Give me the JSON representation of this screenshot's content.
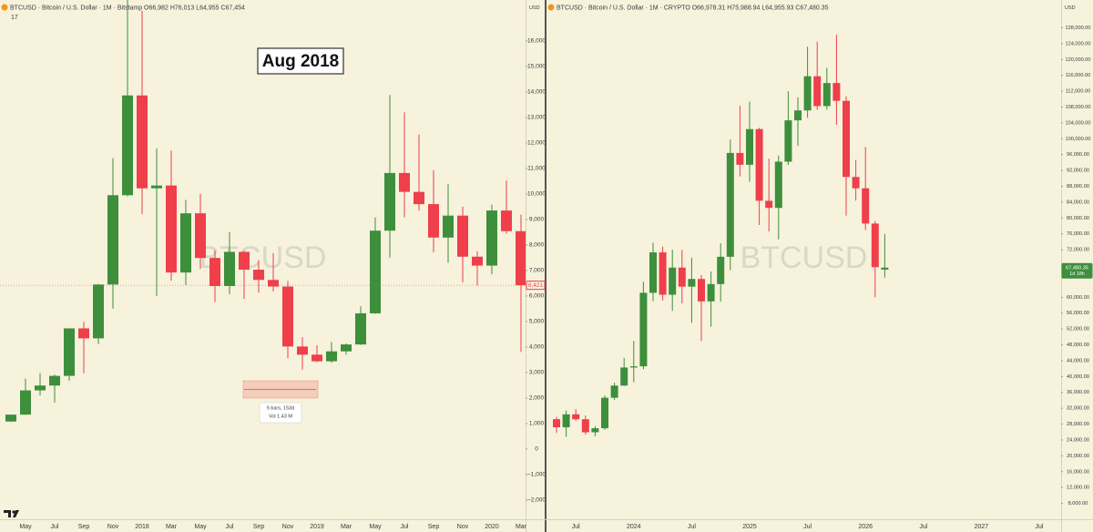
{
  "chart_data": [
    {
      "type": "candlestick",
      "header": "BTCUSD · Bitcoin / U.S. Dollar · 1M · Bitstamp  O66,982 H76,013 L64,955 C67,454",
      "currency": "USD",
      "indicator": "17",
      "watermark": "BTCUSD",
      "annotation": "Aug 2018",
      "measure_label": "5 bars, 153d",
      "measure_volume": "Vol 1.43 M",
      "price_label": "6,421",
      "up_color": "#3d8f3c",
      "down_color": "#ee3f4b",
      "grid": false,
      "categories": [
        null,
        "May",
        null,
        "Jul",
        null,
        "Sep",
        null,
        "Nov",
        null,
        "2018",
        null,
        "Mar",
        null,
        "May",
        null,
        "Jul",
        null,
        "Sep",
        null,
        "Nov",
        null,
        "2019",
        null,
        "Mar",
        null,
        "May",
        null,
        "Jul",
        null,
        "Sep",
        null,
        "Nov",
        null,
        "2020",
        null,
        "Mar"
      ],
      "open": [
        1080,
        1350,
        2300,
        2490,
        2870,
        4730,
        4340,
        6450,
        9950,
        13860,
        10220,
        10330,
        6920,
        9240,
        7490,
        6390,
        7730,
        7030,
        6630,
        6370,
        4020,
        3700,
        3440,
        3830,
        4100,
        5320,
        8560,
        10820,
        10080,
        9600,
        8290,
        9150,
        7540,
        7190,
        9350,
        8540
      ],
      "high": [
        1350,
        2760,
        2980,
        2920,
        4740,
        4980,
        6470,
        11400,
        19670,
        17180,
        11790,
        11700,
        9770,
        10000,
        7780,
        8500,
        7760,
        7410,
        7680,
        6590,
        4390,
        4070,
        4200,
        4140,
        5600,
        9080,
        13880,
        13200,
        12330,
        10930,
        10380,
        9500,
        7750,
        9580,
        10520,
        9190
      ],
      "low": [
        1060,
        1350,
        2100,
        1830,
        2670,
        2970,
        4110,
        5500,
        9900,
        9200,
        6000,
        6600,
        6430,
        7060,
        5760,
        6070,
        5880,
        6130,
        6180,
        3560,
        3120,
        3400,
        3380,
        3700,
        4080,
        5300,
        7500,
        9080,
        9350,
        7710,
        7300,
        6530,
        6410,
        6850,
        8440,
        3800
      ],
      "close": [
        1350,
        2300,
        2490,
        2870,
        4730,
        4340,
        6450,
        9950,
        13860,
        10220,
        10330,
        6920,
        9240,
        7490,
        6390,
        7730,
        7030,
        6630,
        6370,
        4020,
        3700,
        3440,
        3830,
        4100,
        5320,
        8560,
        10820,
        10080,
        9600,
        8290,
        9150,
        7540,
        7190,
        9350,
        8540,
        6421
      ],
      "ylim": [
        -2750,
        17600
      ],
      "yticks": [
        {
          "value": -2000,
          "label": "−2,000"
        },
        {
          "value": -1000,
          "label": "−1,000"
        },
        0,
        {
          "value": 1000,
          "label": "1,000"
        },
        {
          "value": 2000,
          "label": "2,000"
        },
        {
          "value": 3000,
          "label": "3,000"
        },
        {
          "value": 4000,
          "label": "4,000"
        },
        {
          "value": 5000,
          "label": "5,000"
        },
        {
          "value": 6000,
          "label": "6,000"
        },
        {
          "value": 7000,
          "label": "7,000"
        },
        {
          "value": 8000,
          "label": "8,000"
        },
        {
          "value": 9000,
          "label": "9,000"
        },
        {
          "value": 10000,
          "label": "10,000"
        },
        {
          "value": 11000,
          "label": "11,000"
        },
        {
          "value": 12000,
          "label": "12,000"
        },
        {
          "value": 13000,
          "label": "13,000"
        },
        {
          "value": 14000,
          "label": "14,000"
        },
        {
          "value": 15000,
          "label": "15,000"
        },
        {
          "value": 16000,
          "label": "16,000"
        }
      ]
    },
    {
      "type": "candlestick",
      "header": "BTCUSD · Bitcoin / U.S. Dollar · 1M · CRYPTO  O66,978.31 H75,988.94 L64,955.93 C67,480.35",
      "currency": "USD",
      "watermark": "BTCUSD",
      "price_label": "67,480.35",
      "countdown": "1d 18h",
      "up_color": "#3d8f3c",
      "down_color": "#ee3f4b",
      "grid": false,
      "categories": [
        null,
        null,
        "Jul",
        null,
        null,
        null,
        null,
        null,
        "2024",
        null,
        null,
        null,
        null,
        null,
        "Jul",
        null,
        null,
        null,
        null,
        null,
        "2025",
        null,
        null,
        null,
        null,
        null,
        "Jul",
        null,
        null,
        null,
        null,
        null,
        "2026",
        null,
        null,
        null,
        null,
        null,
        "Jul",
        null,
        null,
        null,
        null,
        null,
        "2027",
        null,
        null,
        null,
        null,
        null,
        "Jul"
      ],
      "open": [
        29250,
        27200,
        30470,
        29230,
        25940,
        26960,
        34650,
        37720,
        42280,
        42580,
        61130,
        71330,
        60640,
        67490,
        62680,
        64620,
        58970,
        63330,
        70220,
        96410,
        93430,
        102430,
        84350,
        82550,
        94210,
        104640,
        107140,
        115760,
        108240,
        114050,
        109560,
        90360,
        87500,
        78600,
        66978.31,
        null,
        null,
        null,
        null,
        null,
        null,
        null,
        null,
        null,
        null,
        null,
        null,
        null,
        null,
        null,
        null
      ],
      "high": [
        29830,
        31430,
        31800,
        30190,
        27480,
        35200,
        38450,
        44700,
        48970,
        63910,
        73780,
        72800,
        71960,
        71980,
        70000,
        65600,
        66500,
        73600,
        99800,
        108350,
        109350,
        102750,
        95000,
        95750,
        111980,
        110400,
        123200,
        124500,
        117900,
        126200,
        110700,
        94600,
        97900,
        79300,
        75988.94,
        null,
        null,
        null,
        null,
        null,
        null,
        null,
        null,
        null,
        null,
        null,
        null,
        null,
        null,
        null,
        null
      ],
      "low": [
        25810,
        24800,
        28860,
        25330,
        24900,
        26550,
        34100,
        37620,
        38550,
        41880,
        59010,
        59190,
        56550,
        58440,
        53520,
        49000,
        52550,
        58900,
        66830,
        90500,
        89160,
        78250,
        76600,
        74590,
        93380,
        98240,
        105300,
        107300,
        107300,
        103500,
        80600,
        84400,
        77000,
        60000,
        64955.93,
        null,
        null,
        null,
        null,
        null,
        null,
        null,
        null,
        null,
        null,
        null,
        null,
        null,
        null,
        null,
        null
      ],
      "close": [
        27200,
        30470,
        29230,
        25940,
        26960,
        34650,
        37720,
        42280,
        42580,
        61130,
        71330,
        60640,
        67490,
        62680,
        64620,
        58970,
        63330,
        70220,
        96410,
        93430,
        102430,
        84350,
        82550,
        94210,
        104640,
        107140,
        115760,
        108240,
        114050,
        109560,
        90360,
        87500,
        78600,
        67600,
        67480.35,
        null,
        null,
        null,
        null,
        null,
        null,
        null,
        null,
        null,
        null,
        null,
        null,
        null,
        null,
        null,
        null
      ],
      "ylim": [
        4000,
        135000
      ],
      "yticks": [
        {
          "value": 8000,
          "label": "8,000.00"
        },
        {
          "value": 12000,
          "label": "12,000.00"
        },
        {
          "value": 16000,
          "label": "16,000.00"
        },
        {
          "value": 20000,
          "label": "20,000.00"
        },
        {
          "value": 24000,
          "label": "24,000.00"
        },
        {
          "value": 28000,
          "label": "28,000.00"
        },
        {
          "value": 32000,
          "label": "32,000.00"
        },
        {
          "value": 36000,
          "label": "36,000.00"
        },
        {
          "value": 40000,
          "label": "40,000.00"
        },
        {
          "value": 44000,
          "label": "44,000.00"
        },
        {
          "value": 48000,
          "label": "48,000.00"
        },
        {
          "value": 52000,
          "label": "52,000.00"
        },
        {
          "value": 56000,
          "label": "56,000.00"
        },
        {
          "value": 60000,
          "label": "60,000.00"
        },
        {
          "value": 72000,
          "label": "72,000.00"
        },
        {
          "value": 76000,
          "label": "76,000.00"
        },
        {
          "value": 80000,
          "label": "80,000.00"
        },
        {
          "value": 84000,
          "label": "84,000.00"
        },
        {
          "value": 88000,
          "label": "88,000.00"
        },
        {
          "value": 92000,
          "label": "92,000.00"
        },
        {
          "value": 96000,
          "label": "96,000.00"
        },
        {
          "value": 100000,
          "label": "100,000.00"
        },
        {
          "value": 104000,
          "label": "104,000.00"
        },
        {
          "value": 108000,
          "label": "108,000.00"
        },
        {
          "value": 112000,
          "label": "112,000.00"
        },
        {
          "value": 116000,
          "label": "116,000.00"
        },
        {
          "value": 120000,
          "label": "120,000.00"
        },
        {
          "value": 124000,
          "label": "124,000.00"
        },
        {
          "value": 128000,
          "label": "128,000.00"
        }
      ]
    }
  ]
}
